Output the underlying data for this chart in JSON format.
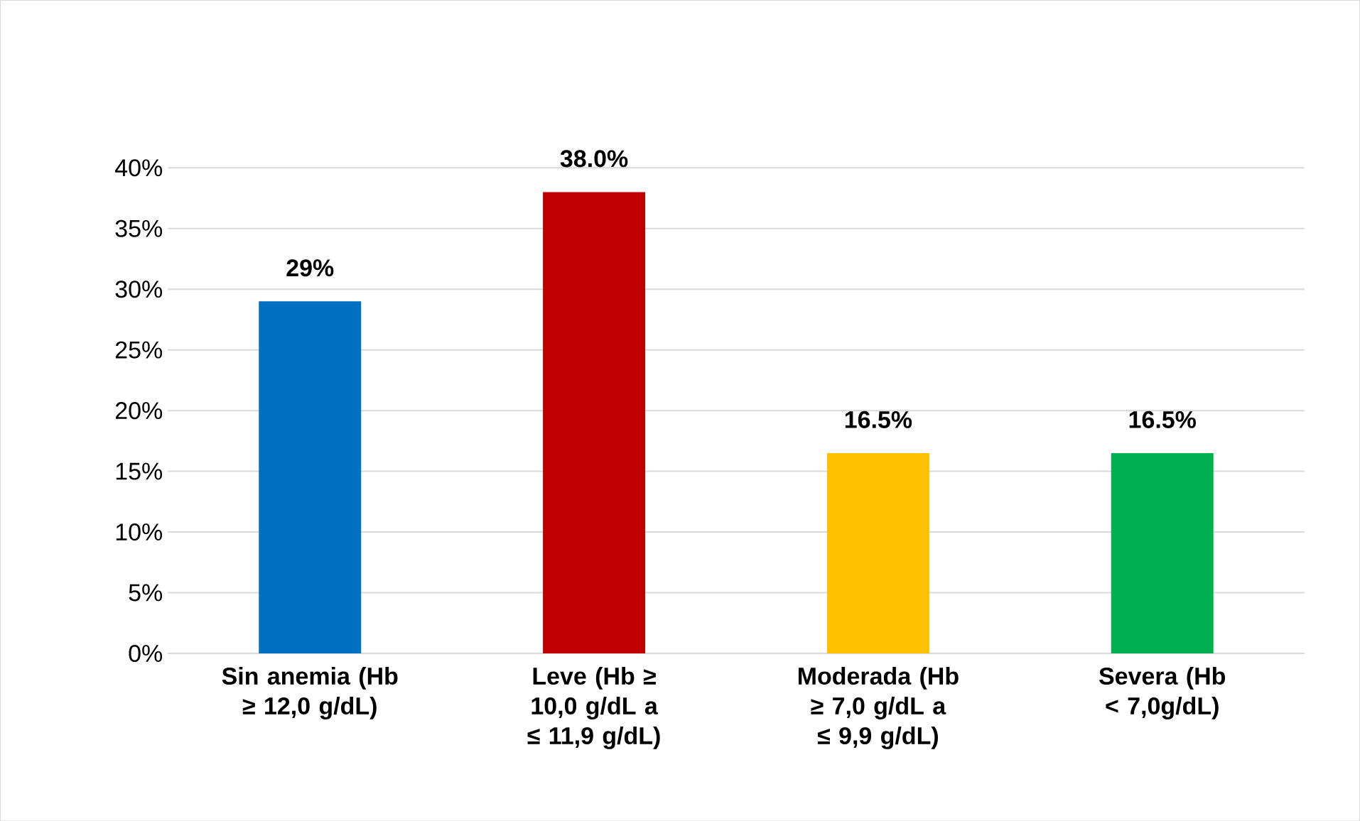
{
  "chart_data": {
    "type": "bar",
    "categories": [
      "Sin anemia (Hb ≥ 12,0 g/dL)",
      "Leve (Hb ≥ 10,0 g/dL a ≤ 11,9 g/dL)",
      "Moderada (Hb ≥ 7,0 g/dL a ≤ 9,9 g/dL)",
      "Severa (Hb < 7,0g/dL)"
    ],
    "values": [
      29,
      38.0,
      16.5,
      16.5
    ],
    "colors": [
      "#0070c0",
      "#c00000",
      "#ffc000",
      "#00b050"
    ],
    "value_labels": [
      "29%",
      "38.0%",
      "16.5%",
      "16.5%"
    ],
    "ylim": [
      0,
      40
    ],
    "yticks": [
      {
        "value": 0,
        "label": "0%"
      },
      {
        "value": 5,
        "label": "5%"
      },
      {
        "value": 10,
        "label": "10%"
      },
      {
        "value": 15,
        "label": "15%"
      },
      {
        "value": 20,
        "label": "20%"
      },
      {
        "value": 25,
        "label": "25%"
      },
      {
        "value": 30,
        "label": "30%"
      },
      {
        "value": 35,
        "label": "35%"
      },
      {
        "value": 40,
        "label": "40%"
      }
    ],
    "grid": "y"
  }
}
